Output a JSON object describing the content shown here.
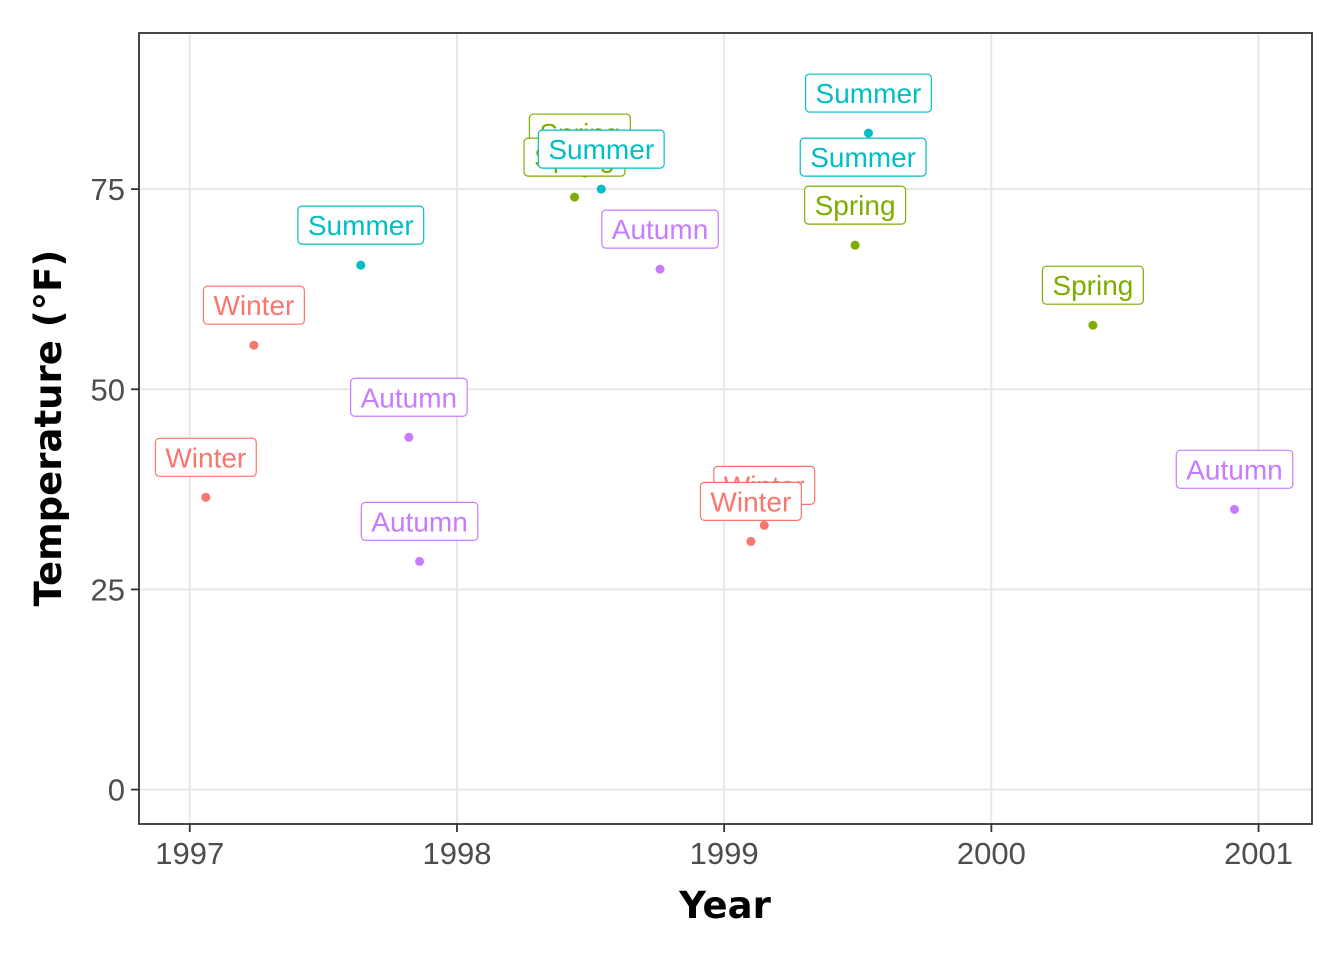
{
  "chart_data": {
    "type": "scatter",
    "title": "",
    "xlabel": "Year",
    "ylabel": "Temperature (°F)",
    "xlim": [
      1996.81,
      2001.2
    ],
    "ylim": [
      -4.3,
      94.5
    ],
    "xticks": [
      1997,
      1998,
      1999,
      2000,
      2001
    ],
    "xtick_labels": [
      "1997",
      "1998",
      "1999",
      "2000",
      "2001"
    ],
    "yticks": [
      0,
      25,
      50,
      75
    ],
    "ytick_labels": [
      "0",
      "25",
      "50",
      "75"
    ],
    "grid": true,
    "legend": "none",
    "season_colors": {
      "Winter": "#F8766D",
      "Spring": "#7CAE00",
      "Summer": "#00BFC4",
      "Autumn": "#C77CFF"
    },
    "points": [
      {
        "x": 1997.06,
        "y": 36.5,
        "season": "Winter",
        "label": "Winter"
      },
      {
        "x": 1997.24,
        "y": 55.5,
        "season": "Winter",
        "label": "Winter"
      },
      {
        "x": 1997.64,
        "y": 65.5,
        "season": "Summer",
        "label": "Summer"
      },
      {
        "x": 1997.82,
        "y": 44.0,
        "season": "Autumn",
        "label": "Autumn"
      },
      {
        "x": 1997.86,
        "y": 28.5,
        "season": "Autumn",
        "label": "Autumn"
      },
      {
        "x": 1998.44,
        "y": 74.0,
        "season": "Spring",
        "label": "Spring"
      },
      {
        "x": 1998.48,
        "y": 77.0,
        "season": "Spring",
        "label": "Spring"
      },
      {
        "x": 1998.54,
        "y": 75.0,
        "season": "Summer",
        "label": "Summer"
      },
      {
        "x": 1998.76,
        "y": 65.0,
        "season": "Autumn",
        "label": "Autumn"
      },
      {
        "x": 1999.1,
        "y": 31.0,
        "season": "Winter",
        "label": "Winter"
      },
      {
        "x": 1999.15,
        "y": 33.0,
        "season": "Winter",
        "label": "Winter"
      },
      {
        "x": 1999.49,
        "y": 68.0,
        "season": "Spring",
        "label": "Spring"
      },
      {
        "x": 1999.54,
        "y": 82.0,
        "season": "Summer",
        "label": "Summer"
      },
      {
        "x": 1999.52,
        "y": 79.0,
        "season": "Summer",
        "label": "Summer"
      },
      {
        "x": 2000.38,
        "y": 58.0,
        "season": "Spring",
        "label": "Spring"
      },
      {
        "x": 2000.91,
        "y": 35.0,
        "season": "Autumn",
        "label": "Autumn"
      }
    ],
    "labels_drawn": [
      {
        "point": 0,
        "x": 1997.06,
        "y": 41.5
      },
      {
        "point": 1,
        "x": 1997.24,
        "y": 60.5
      },
      {
        "point": 2,
        "x": 1997.64,
        "y": 70.5
      },
      {
        "point": 3,
        "x": 1997.82,
        "y": 49.0
      },
      {
        "point": 4,
        "x": 1997.86,
        "y": 33.5
      },
      {
        "point": 6,
        "x": 1998.46,
        "y": 82.0
      },
      {
        "point": 5,
        "x": 1998.44,
        "y": 79.0
      },
      {
        "point": 7,
        "x": 1998.54,
        "y": 80.0
      },
      {
        "point": 8,
        "x": 1998.76,
        "y": 70.0
      },
      {
        "point": 10,
        "x": 1999.15,
        "y": 38.0
      },
      {
        "point": 9,
        "x": 1999.1,
        "y": 36.0
      },
      {
        "point": 11,
        "x": 1999.49,
        "y": 73.0
      },
      {
        "point": 12,
        "x": 1999.54,
        "y": 87.0
      },
      {
        "point": 13,
        "x": 1999.52,
        "y": 79.0
      },
      {
        "point": 14,
        "x": 2000.38,
        "y": 63.0
      },
      {
        "point": 15,
        "x": 2000.91,
        "y": 40.0
      }
    ]
  }
}
